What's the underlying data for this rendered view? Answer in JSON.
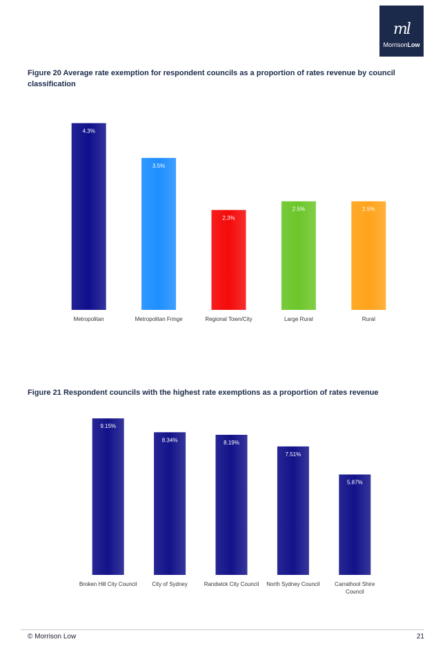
{
  "logo": {
    "mark": "ml",
    "brand_regular": "Morrison",
    "brand_bold": "Low"
  },
  "figures": [
    {
      "title": "Figure 20  Average rate exemption for respondent councils as a proportion of rates revenue by council classification"
    },
    {
      "title": "Figure 21  Respondent councils with the highest rate exemptions as a proportion of rates revenue"
    }
  ],
  "chart_data": [
    {
      "type": "bar",
      "categories": [
        "Metropolitan",
        "Metropolitan Fringe",
        "Regional Town/City",
        "Large Rural",
        "Rural"
      ],
      "values": [
        4.3,
        3.5,
        2.3,
        2.5,
        2.5
      ],
      "labels": [
        "4.3%",
        "3.5%",
        "2.3%",
        "2.5%",
        "2.5%"
      ],
      "colors": [
        "#0f0f8c",
        "#1e8fff",
        "#f50a0a",
        "#6cc62a",
        "#ffa31a"
      ],
      "ylim": [
        0,
        4.45
      ],
      "grid": false,
      "legend": false
    },
    {
      "type": "bar",
      "categories": [
        "Broken Hill City Council",
        "City of Sydney",
        "Randwick City Council",
        "North Sydney Council",
        "Carrathool Shire Council"
      ],
      "values": [
        9.15,
        8.34,
        8.19,
        7.51,
        5.87
      ],
      "labels": [
        "9.15%",
        "8.34%",
        "8.19%",
        "7.51%",
        "5.87%"
      ],
      "colors": [
        "#13138a",
        "#13138a",
        "#13138a",
        "#13138a",
        "#13138a"
      ],
      "ylim": [
        0,
        9.4
      ],
      "grid": false,
      "legend": false
    }
  ],
  "footer": {
    "copyright": "© Morrison Low",
    "page_number": "21"
  }
}
